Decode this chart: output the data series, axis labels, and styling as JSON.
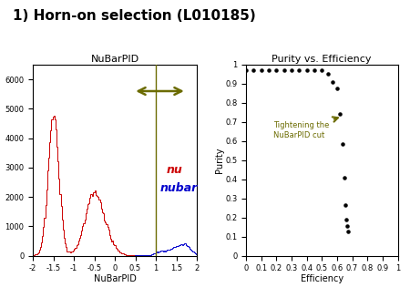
{
  "title": "1) Horn-on selection (L010185)",
  "left_title": "NuBarPID",
  "right_title": "Purity vs. Efficiency",
  "left_xlabel": "NuBarPID",
  "right_xlabel": "Efficiency",
  "right_ylabel": "Purity",
  "nu_label": "nu",
  "nubar_label": "nubar",
  "annotation": "Tightening the\nNuBarPID cut",
  "annotation_color": "#6b6b00",
  "nu_color": "#cc0000",
  "nubar_color": "#0000cc",
  "arrow_color": "#6b6b00",
  "vline_color": "#6b6b00",
  "vline_x": 1.0,
  "left_xlim": [
    -2,
    2
  ],
  "left_ylim": [
    0,
    6500
  ],
  "right_xlim": [
    0,
    1
  ],
  "right_ylim": [
    0,
    1
  ],
  "scatter_efficiency": [
    0.0,
    0.05,
    0.1,
    0.15,
    0.2,
    0.25,
    0.3,
    0.35,
    0.4,
    0.45,
    0.5,
    0.54,
    0.57,
    0.6,
    0.62,
    0.635,
    0.648,
    0.655,
    0.662,
    0.667,
    0.671
  ],
  "scatter_purity": [
    0.97,
    0.97,
    0.97,
    0.97,
    0.97,
    0.97,
    0.97,
    0.97,
    0.97,
    0.97,
    0.97,
    0.95,
    0.91,
    0.875,
    0.74,
    0.585,
    0.41,
    0.265,
    0.19,
    0.155,
    0.125
  ],
  "background_color": "#ffffff",
  "title_fontsize": 11,
  "axis_fontsize": 7,
  "tick_fontsize": 6,
  "nu_fontsize": 9,
  "nubar_fontsize": 9
}
